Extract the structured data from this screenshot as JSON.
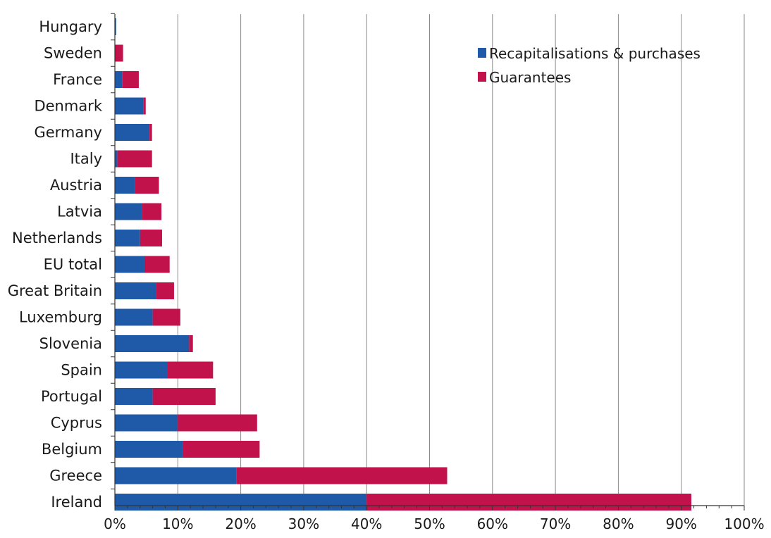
{
  "chart_data": {
    "type": "bar",
    "orientation": "horizontal",
    "stacked": true,
    "categories": [
      "Hungary",
      "Sweden",
      "France",
      "Denmark",
      "Germany",
      "Italy",
      "Austria",
      "Latvia",
      "Netherlands",
      "EU total",
      "Great Britain",
      "Luxemburg",
      "Slovenia",
      "Spain",
      "Portugal",
      "Cyprus",
      "Belgium",
      "Greece",
      "Ireland"
    ],
    "series": [
      {
        "name": "Recapitalisations & purchases",
        "color": "#1f5aa8",
        "values": [
          0.2,
          0.0,
          1.2,
          4.5,
          5.5,
          0.4,
          3.2,
          4.3,
          4.0,
          4.7,
          6.5,
          6.0,
          11.8,
          8.4,
          6.0,
          10.0,
          10.8,
          19.3,
          40.0
        ]
      },
      {
        "name": "Guarantees",
        "color": "#c2124c",
        "values": [
          0.0,
          1.3,
          2.6,
          0.4,
          0.4,
          5.5,
          3.8,
          3.1,
          3.5,
          4.0,
          2.9,
          4.4,
          0.6,
          7.2,
          10.0,
          12.6,
          12.2,
          33.5,
          51.6
        ]
      }
    ],
    "xlim": [
      0,
      100
    ],
    "x_ticks": [
      "0%",
      "10%",
      "20%",
      "30%",
      "40%",
      "50%",
      "60%",
      "70%",
      "80%",
      "90%",
      "100%"
    ],
    "grid": "vertical",
    "legend_position": "top-right",
    "title": "",
    "xlabel": "",
    "ylabel": ""
  }
}
